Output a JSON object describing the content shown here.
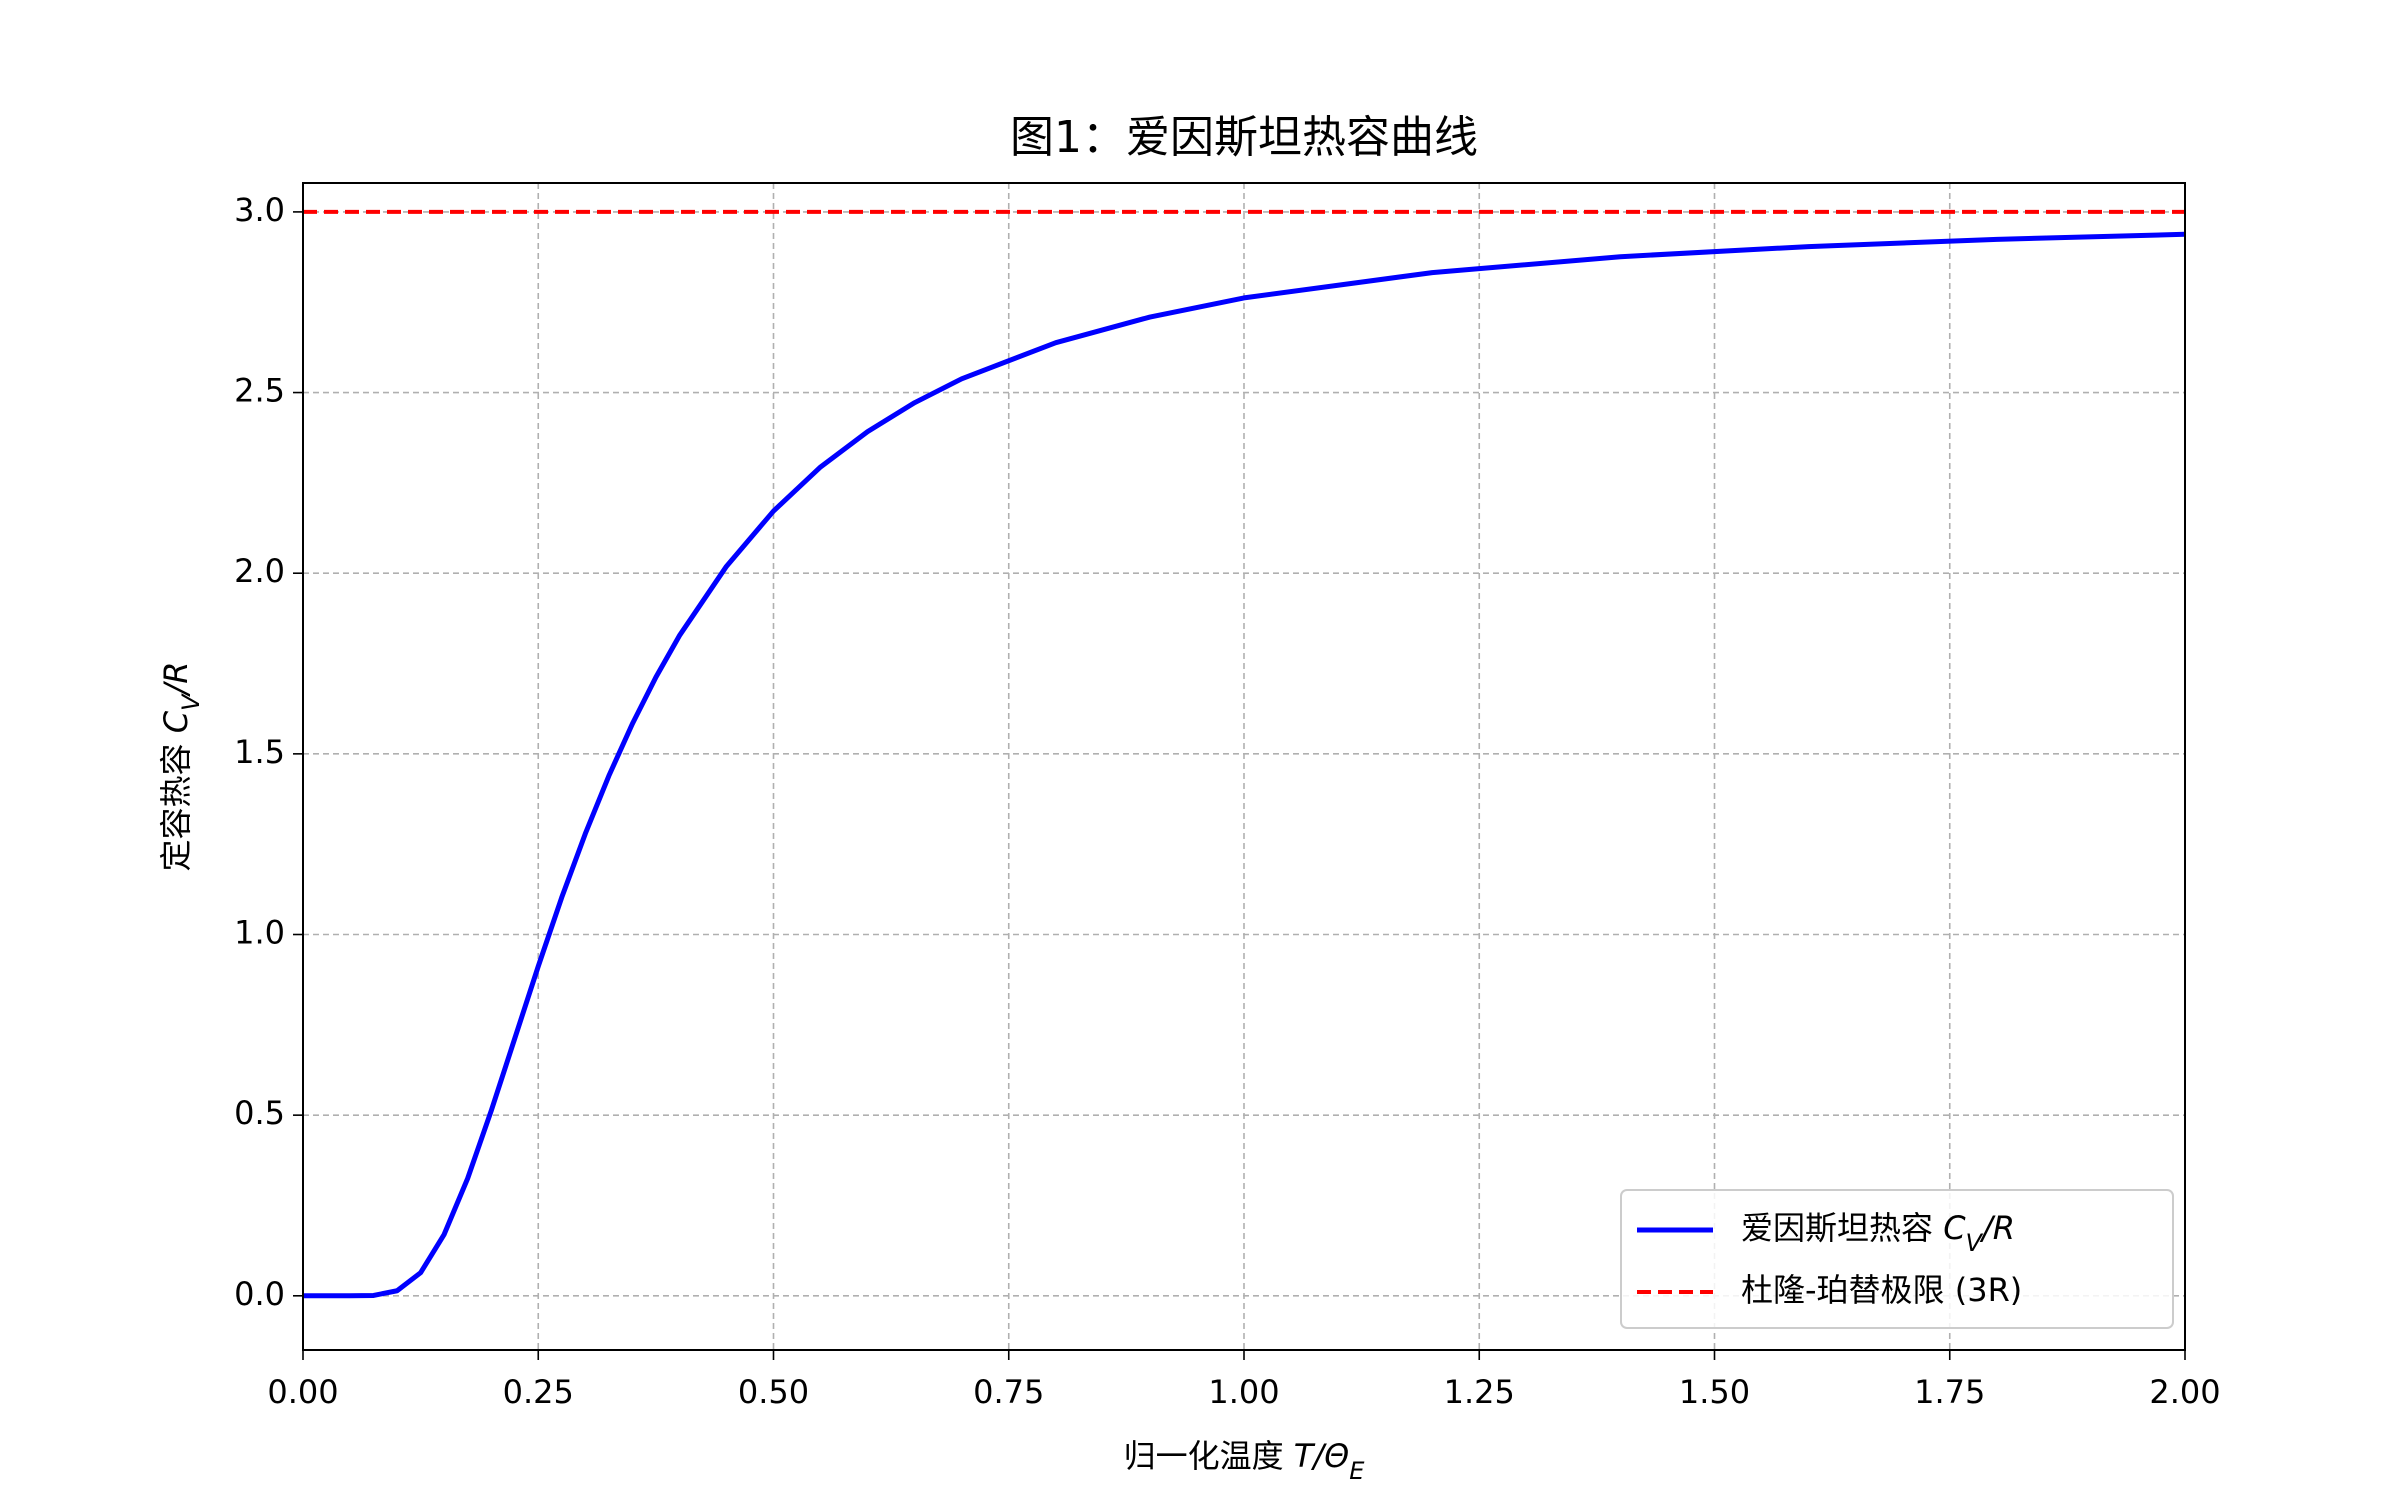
{
  "chart_data": {
    "type": "line",
    "title": "图1：爱因斯坦热容曲线",
    "xlabel": [
      "归一化温度 ",
      "T/Θ",
      "E"
    ],
    "ylabel": [
      "定容热容 ",
      "C",
      "V",
      "/R"
    ],
    "series": [
      {
        "name": [
          "爱因斯坦热容 ",
          "C",
          "V",
          "/R"
        ],
        "color": "#0000ff",
        "style": "solid",
        "x": [
          0,
          0.025,
          0.05,
          0.075,
          0.1,
          0.125,
          0.15,
          0.175,
          0.2,
          0.225,
          0.25,
          0.275,
          0.3,
          0.325,
          0.35,
          0.375,
          0.4,
          0.45,
          0.5,
          0.55,
          0.6,
          0.65,
          0.7,
          0.8,
          0.9,
          1.0,
          1.2,
          1.4,
          1.6,
          1.8,
          2.0
        ],
        "values": [
          0,
          0,
          0,
          0.001,
          0.014,
          0.064,
          0.17,
          0.325,
          0.512,
          0.712,
          0.912,
          1.103,
          1.279,
          1.439,
          1.583,
          1.712,
          1.827,
          2.019,
          2.172,
          2.294,
          2.392,
          2.472,
          2.538,
          2.638,
          2.709,
          2.762,
          2.832,
          2.876,
          2.904,
          2.924,
          2.938
        ]
      },
      {
        "name": [
          "杜隆-珀替极限 (3R)"
        ],
        "color": "#ff0000",
        "style": "dashed",
        "x": [
          0,
          2.0
        ],
        "values": [
          3.0,
          3.0
        ]
      }
    ],
    "xlim": [
      0,
      2.0
    ],
    "ylim": [
      -0.15,
      3.08
    ],
    "xticks": [
      {
        "value": 0,
        "label": "0.00"
      },
      {
        "value": 0.25,
        "label": "0.25"
      },
      {
        "value": 0.5,
        "label": "0.50"
      },
      {
        "value": 0.75,
        "label": "0.75"
      },
      {
        "value": 1.0,
        "label": "1.00"
      },
      {
        "value": 1.25,
        "label": "1.25"
      },
      {
        "value": 1.5,
        "label": "1.50"
      },
      {
        "value": 1.75,
        "label": "1.75"
      },
      {
        "value": 2.0,
        "label": "2.00"
      }
    ],
    "yticks": [
      {
        "value": 0,
        "label": "0.0"
      },
      {
        "value": 0.5,
        "label": "0.5"
      },
      {
        "value": 1.0,
        "label": "1.0"
      },
      {
        "value": 1.5,
        "label": "1.5"
      },
      {
        "value": 2.0,
        "label": "2.0"
      },
      {
        "value": 2.5,
        "label": "2.5"
      },
      {
        "value": 3.0,
        "label": "3.0"
      }
    ],
    "grid": true,
    "legend": "lower right"
  }
}
